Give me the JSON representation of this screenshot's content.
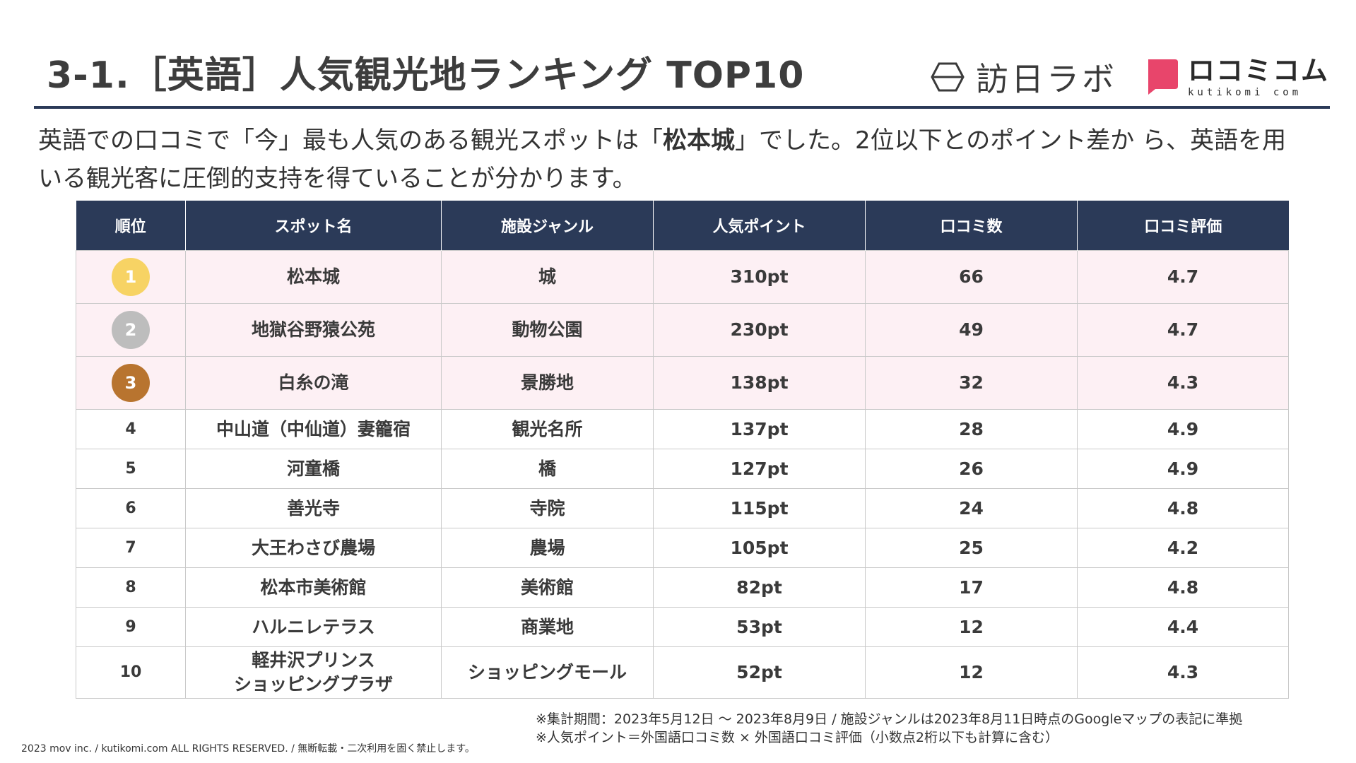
{
  "header": {
    "title": "3-1.［英語］人気観光地ランキング TOP10",
    "logo_houjin": "訪日ラボ",
    "logo_kuchikomi_main": "ロコミコム",
    "logo_kuchikomi_sub": "kutikomi com"
  },
  "lead": {
    "before": "英語での口コミで「今」最も人気のある観光スポットは「",
    "highlight": "松本城",
    "after": "」でした。2位以下とのポイント差か ら、英語を用いる観光客に圧倒的支持を得ていることが分かります。"
  },
  "table": {
    "headers": [
      "順位",
      "スポット名",
      "施設ジャンル",
      "人気ポイント",
      "口コミ数",
      "口コミ評価"
    ],
    "rows": [
      {
        "rank": "1",
        "spot": "松本城",
        "spot_line2": "",
        "genre": "城",
        "points": "310pt",
        "reviews": "66",
        "rating": "4.7"
      },
      {
        "rank": "2",
        "spot": "地獄谷野猿公苑",
        "spot_line2": "",
        "genre": "動物公園",
        "points": "230pt",
        "reviews": "49",
        "rating": "4.7"
      },
      {
        "rank": "3",
        "spot": "白糸の滝",
        "spot_line2": "",
        "genre": "景勝地",
        "points": "138pt",
        "reviews": "32",
        "rating": "4.3"
      },
      {
        "rank": "4",
        "spot": "中山道（中仙道）妻籠宿",
        "spot_line2": "",
        "genre": "観光名所",
        "points": "137pt",
        "reviews": "28",
        "rating": "4.9"
      },
      {
        "rank": "5",
        "spot": "河童橋",
        "spot_line2": "",
        "genre": "橋",
        "points": "127pt",
        "reviews": "26",
        "rating": "4.9"
      },
      {
        "rank": "6",
        "spot": "善光寺",
        "spot_line2": "",
        "genre": "寺院",
        "points": "115pt",
        "reviews": "24",
        "rating": "4.8"
      },
      {
        "rank": "7",
        "spot": "大王わさび農場",
        "spot_line2": "",
        "genre": "農場",
        "points": "105pt",
        "reviews": "25",
        "rating": "4.2"
      },
      {
        "rank": "8",
        "spot": "松本市美術館",
        "spot_line2": "",
        "genre": "美術館",
        "points": "82pt",
        "reviews": "17",
        "rating": "4.8"
      },
      {
        "rank": "9",
        "spot": "ハルニレテラス",
        "spot_line2": "",
        "genre": "商業地",
        "points": "53pt",
        "reviews": "12",
        "rating": "4.4"
      },
      {
        "rank": "10",
        "spot": "軽井沢プリンス",
        "spot_line2": "ショッピングプラザ",
        "genre": "ショッピングモール",
        "points": "52pt",
        "reviews": "12",
        "rating": "4.3"
      }
    ]
  },
  "medal_colors": {
    "gold": "#f7d364",
    "silver": "#bdbdbd",
    "bronze": "#b8742f"
  },
  "colors": {
    "navy": "#2b3a58",
    "top_row_bg": "#fdf0f4",
    "logo_pink": "#e8456b"
  },
  "footer": {
    "note1": "※集計期間：2023年5月12日 〜 2023年8月9日 / 施設ジャンルは2023年8月11日時点のGoogleマップの表記に準拠",
    "note2": "※人気ポイント＝外国語口コミ数 × 外国語口コミ評価（小数点2桁以下も計算に含む）",
    "copyright": "2023 mov inc. / kutikomi.com ALL RIGHTS RESERVED. / 無断転載・二次利用を固く禁止します。"
  }
}
